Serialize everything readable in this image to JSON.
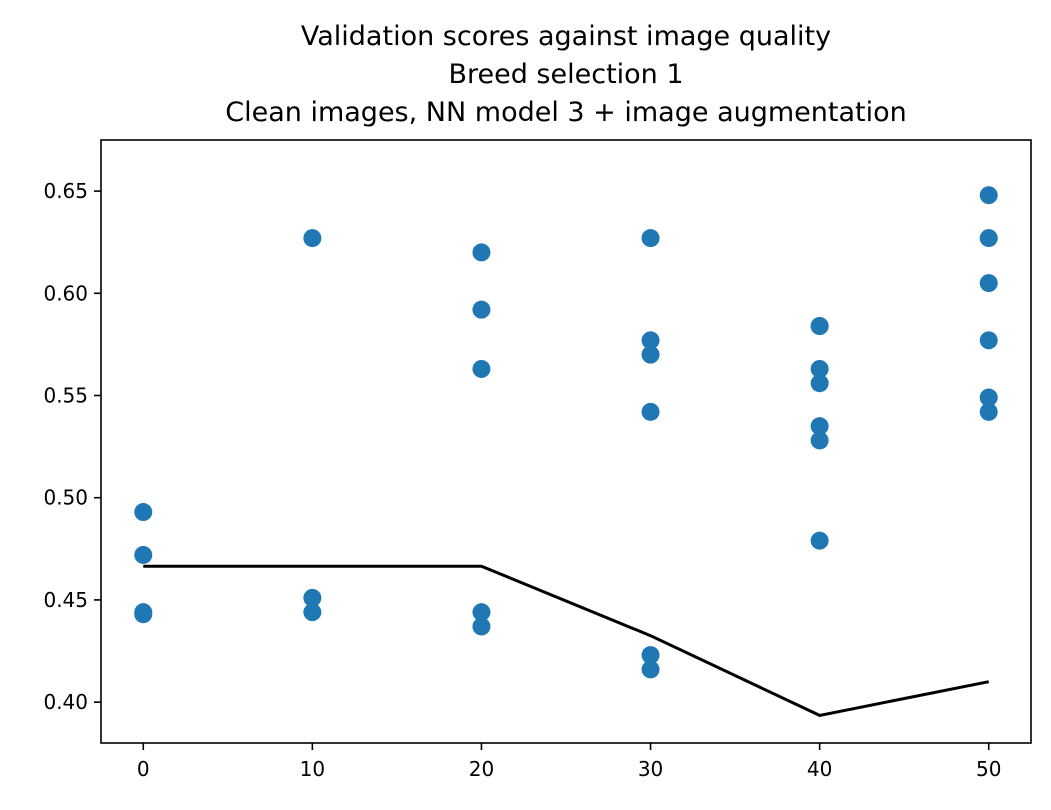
{
  "chart_data": {
    "type": "scatter",
    "title_lines": [
      "Validation scores against image quality",
      "Breed selection 1",
      "Clean images, NN model 3 + image augmentation"
    ],
    "xlabel": "",
    "ylabel": "",
    "xlim": [
      -2.5,
      52.5
    ],
    "ylim": [
      0.38,
      0.675
    ],
    "xticks": [
      0,
      10,
      20,
      30,
      40,
      50
    ],
    "xtick_labels": [
      "0",
      "10",
      "20",
      "30",
      "40",
      "50"
    ],
    "yticks": [
      0.4,
      0.45,
      0.5,
      0.55,
      0.6,
      0.65
    ],
    "ytick_labels": [
      "0.40",
      "0.45",
      "0.50",
      "0.55",
      "0.60",
      "0.65"
    ],
    "grid": false,
    "legend": "none",
    "points": {
      "color": "#1f77b4",
      "x": [
        0,
        0,
        0,
        0,
        10,
        10,
        10,
        20,
        20,
        20,
        20,
        20,
        30,
        30,
        30,
        30,
        30,
        30,
        40,
        40,
        40,
        40,
        40,
        40,
        40,
        50,
        50,
        50,
        50,
        50,
        50
      ],
      "y": [
        0.493,
        0.472,
        0.444,
        0.443,
        0.627,
        0.451,
        0.444,
        0.62,
        0.592,
        0.563,
        0.444,
        0.437,
        0.627,
        0.577,
        0.57,
        0.542,
        0.423,
        0.416,
        0.584,
        0.563,
        0.556,
        0.535,
        0.528,
        0.479,
        0.584,
        0.648,
        0.627,
        0.605,
        0.577,
        0.549,
        0.542
      ]
    },
    "line": {
      "color": "#000000",
      "x": [
        0,
        10,
        20,
        30,
        40,
        50
      ],
      "y": [
        0.4665,
        0.4665,
        0.4665,
        0.4325,
        0.3935,
        0.41
      ]
    }
  }
}
